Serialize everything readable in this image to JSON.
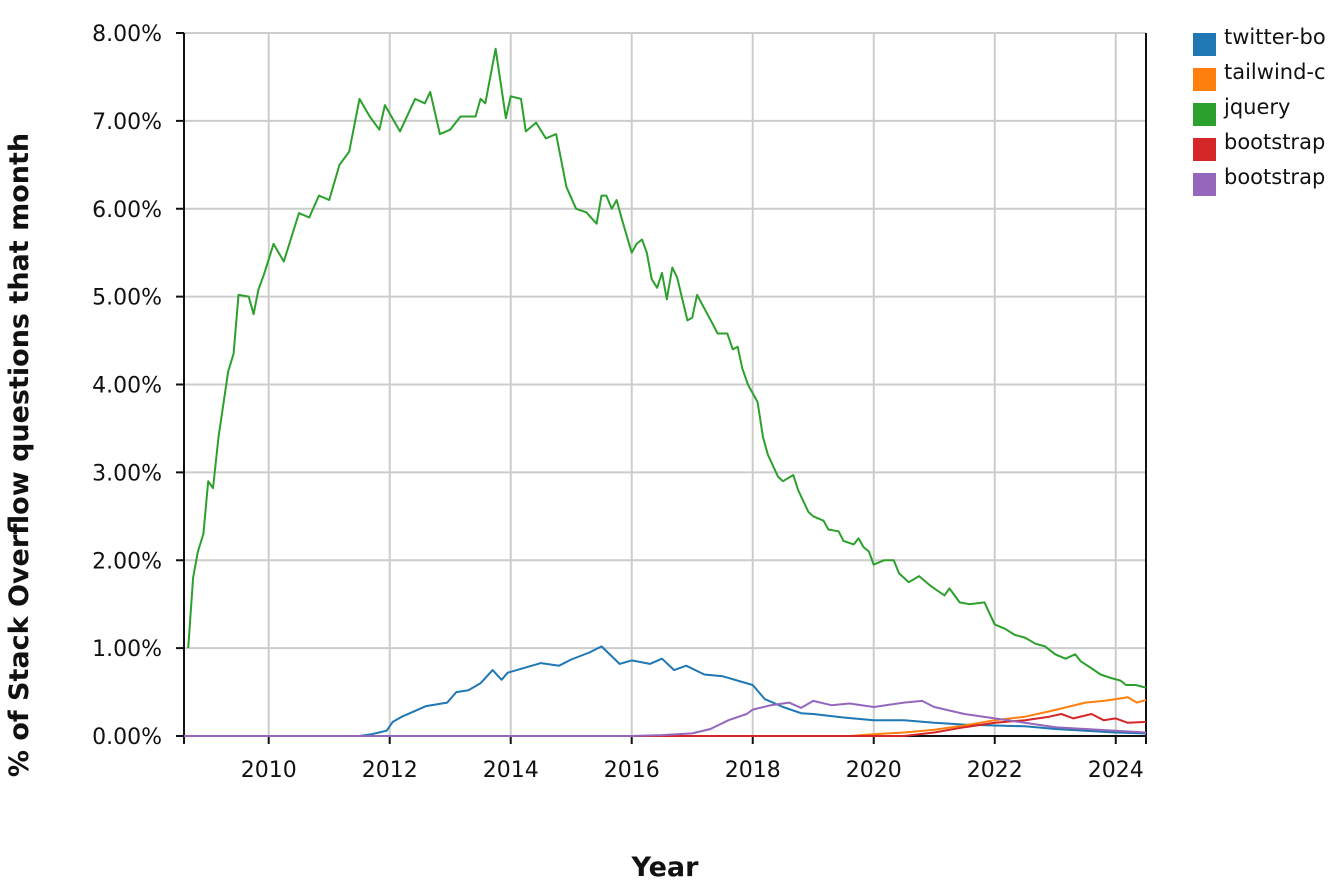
{
  "chart_data": {
    "type": "line",
    "xlabel": "Year",
    "ylabel": "% of Stack Overflow questions that month",
    "xlim": [
      2008.6,
      2024.5
    ],
    "ylim": [
      0,
      0.08
    ],
    "x_ticks": [
      2010,
      2012,
      2014,
      2016,
      2018,
      2020,
      2022,
      2024
    ],
    "y_ticks": [
      0,
      0.01,
      0.02,
      0.03,
      0.04,
      0.05,
      0.06,
      0.07,
      0.08
    ],
    "x_tick_labels": [
      "2010",
      "2012",
      "2014",
      "2016",
      "2018",
      "2020",
      "2022",
      "2024"
    ],
    "y_tick_labels": [
      "0.00%",
      "1.00%",
      "2.00%",
      "3.00%",
      "4.00%",
      "5.00%",
      "6.00%",
      "7.00%",
      "8.00%"
    ],
    "grid": true,
    "legend_position": "right",
    "series": [
      {
        "name": "twitter-bo",
        "color": "#1f77b4",
        "points": [
          [
            2008.6,
            0
          ],
          [
            2011.5,
            0
          ],
          [
            2011.7,
            0.0002
          ],
          [
            2011.95,
            0.0006
          ],
          [
            2012.05,
            0.0016
          ],
          [
            2012.2,
            0.0022
          ],
          [
            2012.4,
            0.0028
          ],
          [
            2012.6,
            0.0034
          ],
          [
            2012.95,
            0.0038
          ],
          [
            2013.1,
            0.005
          ],
          [
            2013.3,
            0.0052
          ],
          [
            2013.5,
            0.006
          ],
          [
            2013.7,
            0.0075
          ],
          [
            2013.85,
            0.0064
          ],
          [
            2013.95,
            0.0072
          ],
          [
            2014.2,
            0.0077
          ],
          [
            2014.5,
            0.0083
          ],
          [
            2014.8,
            0.008
          ],
          [
            2015.0,
            0.0087
          ],
          [
            2015.3,
            0.0095
          ],
          [
            2015.5,
            0.0102
          ],
          [
            2015.8,
            0.0082
          ],
          [
            2016.0,
            0.0086
          ],
          [
            2016.3,
            0.0082
          ],
          [
            2016.5,
            0.0088
          ],
          [
            2016.7,
            0.0075
          ],
          [
            2016.9,
            0.008
          ],
          [
            2017.2,
            0.007
          ],
          [
            2017.5,
            0.0068
          ],
          [
            2017.8,
            0.0062
          ],
          [
            2018.0,
            0.0058
          ],
          [
            2018.2,
            0.0042
          ],
          [
            2018.5,
            0.0033
          ],
          [
            2018.8,
            0.0026
          ],
          [
            2019.0,
            0.0025
          ],
          [
            2019.5,
            0.0021
          ],
          [
            2020.0,
            0.0018
          ],
          [
            2020.5,
            0.0018
          ],
          [
            2021.0,
            0.0015
          ],
          [
            2021.5,
            0.0013
          ],
          [
            2022.0,
            0.0012
          ],
          [
            2022.5,
            0.0011
          ],
          [
            2023.0,
            0.0008
          ],
          [
            2023.5,
            0.0006
          ],
          [
            2024.0,
            0.0004
          ],
          [
            2024.5,
            0.0003
          ]
        ]
      },
      {
        "name": "tailwind-c",
        "color": "#ff7f0e",
        "points": [
          [
            2008.6,
            0
          ],
          [
            2019.6,
            0
          ],
          [
            2020.0,
            0.0002
          ],
          [
            2020.5,
            0.0004
          ],
          [
            2021.0,
            0.0007
          ],
          [
            2021.5,
            0.0012
          ],
          [
            2022.0,
            0.0018
          ],
          [
            2022.5,
            0.0022
          ],
          [
            2022.9,
            0.0028
          ],
          [
            2023.2,
            0.0033
          ],
          [
            2023.5,
            0.0038
          ],
          [
            2023.8,
            0.004
          ],
          [
            2024.0,
            0.0042
          ],
          [
            2024.2,
            0.0044
          ],
          [
            2024.35,
            0.0038
          ],
          [
            2024.5,
            0.0041
          ]
        ]
      },
      {
        "name": "jquery",
        "color": "#2ca02c",
        "points": [
          [
            2008.67,
            0.01
          ],
          [
            2008.75,
            0.018
          ],
          [
            2008.83,
            0.021
          ],
          [
            2008.92,
            0.023
          ],
          [
            2009.0,
            0.029
          ],
          [
            2009.08,
            0.0282
          ],
          [
            2009.17,
            0.034
          ],
          [
            2009.33,
            0.0415
          ],
          [
            2009.42,
            0.0435
          ],
          [
            2009.5,
            0.0502
          ],
          [
            2009.67,
            0.05
          ],
          [
            2009.75,
            0.048
          ],
          [
            2009.83,
            0.0508
          ],
          [
            2009.92,
            0.0525
          ],
          [
            2010.08,
            0.056
          ],
          [
            2010.25,
            0.054
          ],
          [
            2010.5,
            0.0595
          ],
          [
            2010.67,
            0.059
          ],
          [
            2010.83,
            0.0615
          ],
          [
            2011.0,
            0.061
          ],
          [
            2011.17,
            0.065
          ],
          [
            2011.33,
            0.0665
          ],
          [
            2011.5,
            0.0725
          ],
          [
            2011.67,
            0.0705
          ],
          [
            2011.83,
            0.069
          ],
          [
            2011.92,
            0.0718
          ],
          [
            2012.17,
            0.0688
          ],
          [
            2012.42,
            0.0725
          ],
          [
            2012.58,
            0.072
          ],
          [
            2012.67,
            0.0733
          ],
          [
            2012.83,
            0.0685
          ],
          [
            2013.0,
            0.069
          ],
          [
            2013.17,
            0.0705
          ],
          [
            2013.42,
            0.0705
          ],
          [
            2013.5,
            0.0725
          ],
          [
            2013.58,
            0.072
          ],
          [
            2013.75,
            0.0782
          ],
          [
            2013.92,
            0.0703
          ],
          [
            2014.0,
            0.0728
          ],
          [
            2014.17,
            0.0725
          ],
          [
            2014.25,
            0.0688
          ],
          [
            2014.42,
            0.0698
          ],
          [
            2014.58,
            0.068
          ],
          [
            2014.75,
            0.0685
          ],
          [
            2014.92,
            0.0625
          ],
          [
            2015.08,
            0.06
          ],
          [
            2015.25,
            0.0596
          ],
          [
            2015.42,
            0.0583
          ],
          [
            2015.5,
            0.0615
          ],
          [
            2015.58,
            0.0615
          ],
          [
            2015.67,
            0.06
          ],
          [
            2015.75,
            0.061
          ],
          [
            2015.83,
            0.059
          ],
          [
            2016.0,
            0.055
          ],
          [
            2016.08,
            0.056
          ],
          [
            2016.17,
            0.0565
          ],
          [
            2016.25,
            0.055
          ],
          [
            2016.33,
            0.052
          ],
          [
            2016.42,
            0.051
          ],
          [
            2016.5,
            0.0527
          ],
          [
            2016.58,
            0.0497
          ],
          [
            2016.67,
            0.0533
          ],
          [
            2016.75,
            0.0522
          ],
          [
            2016.92,
            0.0473
          ],
          [
            2017.0,
            0.0476
          ],
          [
            2017.08,
            0.0502
          ],
          [
            2017.25,
            0.048
          ],
          [
            2017.33,
            0.047
          ],
          [
            2017.42,
            0.0458
          ],
          [
            2017.58,
            0.0458
          ],
          [
            2017.67,
            0.044
          ],
          [
            2017.75,
            0.0443
          ],
          [
            2017.83,
            0.0418
          ],
          [
            2017.92,
            0.04
          ],
          [
            2018.08,
            0.038
          ],
          [
            2018.17,
            0.034
          ],
          [
            2018.25,
            0.032
          ],
          [
            2018.42,
            0.0295
          ],
          [
            2018.5,
            0.029
          ],
          [
            2018.67,
            0.0297
          ],
          [
            2018.75,
            0.028
          ],
          [
            2018.92,
            0.0255
          ],
          [
            2019.0,
            0.025
          ],
          [
            2019.17,
            0.0245
          ],
          [
            2019.25,
            0.0235
          ],
          [
            2019.42,
            0.0233
          ],
          [
            2019.5,
            0.0222
          ],
          [
            2019.67,
            0.0218
          ],
          [
            2019.75,
            0.0225
          ],
          [
            2019.83,
            0.0215
          ],
          [
            2019.92,
            0.021
          ],
          [
            2020.0,
            0.0195
          ],
          [
            2020.17,
            0.02
          ],
          [
            2020.33,
            0.02
          ],
          [
            2020.42,
            0.0185
          ],
          [
            2020.58,
            0.0175
          ],
          [
            2020.75,
            0.0182
          ],
          [
            2020.92,
            0.0172
          ],
          [
            2021.0,
            0.0168
          ],
          [
            2021.17,
            0.016
          ],
          [
            2021.25,
            0.0168
          ],
          [
            2021.42,
            0.0152
          ],
          [
            2021.58,
            0.015
          ],
          [
            2021.83,
            0.0152
          ],
          [
            2022.0,
            0.0127
          ],
          [
            2022.17,
            0.0122
          ],
          [
            2022.33,
            0.0115
          ],
          [
            2022.5,
            0.0112
          ],
          [
            2022.67,
            0.0105
          ],
          [
            2022.83,
            0.0102
          ],
          [
            2023.0,
            0.0093
          ],
          [
            2023.17,
            0.0088
          ],
          [
            2023.33,
            0.0093
          ],
          [
            2023.42,
            0.0085
          ],
          [
            2023.58,
            0.0078
          ],
          [
            2023.75,
            0.007
          ],
          [
            2023.92,
            0.0066
          ],
          [
            2024.08,
            0.0063
          ],
          [
            2024.17,
            0.0058
          ],
          [
            2024.33,
            0.0058
          ],
          [
            2024.5,
            0.0055
          ]
        ]
      },
      {
        "name": "bootstrap",
        "color": "#d62728",
        "points": [
          [
            2008.6,
            0
          ],
          [
            2020.5,
            0
          ],
          [
            2021.0,
            0.0004
          ],
          [
            2021.5,
            0.001
          ],
          [
            2022.0,
            0.0015
          ],
          [
            2022.5,
            0.0018
          ],
          [
            2022.9,
            0.0022
          ],
          [
            2023.1,
            0.0025
          ],
          [
            2023.3,
            0.002
          ],
          [
            2023.6,
            0.0025
          ],
          [
            2023.8,
            0.0018
          ],
          [
            2024.0,
            0.002
          ],
          [
            2024.2,
            0.0015
          ],
          [
            2024.5,
            0.0016
          ]
        ]
      },
      {
        "name": "bootstrap",
        "color": "#9467bd",
        "points": [
          [
            2008.6,
            0
          ],
          [
            2016.0,
            0
          ],
          [
            2016.5,
            0.0001
          ],
          [
            2017.0,
            0.0003
          ],
          [
            2017.3,
            0.0008
          ],
          [
            2017.6,
            0.0018
          ],
          [
            2017.9,
            0.0025
          ],
          [
            2018.0,
            0.003
          ],
          [
            2018.3,
            0.0035
          ],
          [
            2018.6,
            0.0038
          ],
          [
            2018.8,
            0.0032
          ],
          [
            2019.0,
            0.004
          ],
          [
            2019.3,
            0.0035
          ],
          [
            2019.6,
            0.0037
          ],
          [
            2020.0,
            0.0033
          ],
          [
            2020.5,
            0.0038
          ],
          [
            2020.8,
            0.004
          ],
          [
            2021.0,
            0.0033
          ],
          [
            2021.5,
            0.0025
          ],
          [
            2022.0,
            0.002
          ],
          [
            2022.5,
            0.0015
          ],
          [
            2023.0,
            0.001
          ],
          [
            2023.5,
            0.0008
          ],
          [
            2024.0,
            0.0006
          ],
          [
            2024.5,
            0.0004
          ]
        ]
      }
    ]
  }
}
